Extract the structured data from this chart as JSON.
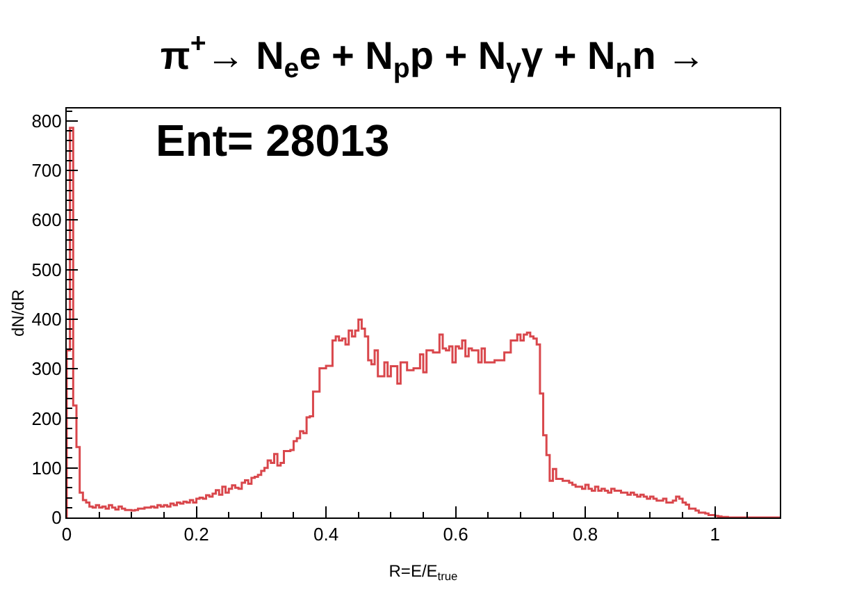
{
  "chart_data": {
    "type": "histogram",
    "title": "π$^{+}$→ N$_{e}$e + N$_{p}$p + N$_{γ}$γ + N$_{n}$n →",
    "annotations": [
      "Ent= 28013"
    ],
    "xlabel": "R=E/E$_{true}$",
    "ylabel": "dN/dR",
    "color": "#d9474c",
    "xlim": [
      0,
      1.1
    ],
    "xticks": [
      0,
      0.2,
      0.4,
      0.6,
      0.8,
      1
    ],
    "ylim": [
      0,
      825
    ],
    "yticks": [
      0,
      100,
      200,
      300,
      400,
      500,
      600,
      700,
      800
    ],
    "bins": [
      0.0,
      0.005,
      0.01,
      0.015,
      0.02,
      0.025,
      0.03,
      0.035,
      0.04,
      0.045,
      0.05,
      0.055,
      0.06,
      0.065,
      0.07,
      0.075,
      0.08,
      0.085,
      0.09,
      0.095,
      0.1,
      0.105,
      0.11,
      0.115,
      0.12,
      0.125,
      0.13,
      0.135,
      0.14,
      0.145,
      0.15,
      0.155,
      0.16,
      0.165,
      0.17,
      0.175,
      0.18,
      0.185,
      0.19,
      0.195,
      0.2,
      0.205,
      0.21,
      0.215,
      0.22,
      0.225,
      0.23,
      0.235,
      0.24,
      0.245,
      0.25,
      0.255,
      0.26,
      0.265,
      0.27,
      0.275,
      0.28,
      0.285,
      0.29,
      0.295,
      0.3,
      0.305,
      0.31,
      0.315,
      0.32,
      0.325,
      0.33,
      0.335,
      0.34,
      0.345,
      0.35,
      0.355,
      0.36,
      0.365,
      0.37,
      0.375,
      0.38,
      0.385,
      0.39,
      0.395,
      0.4,
      0.405,
      0.41,
      0.415,
      0.42,
      0.425,
      0.43,
      0.435,
      0.44,
      0.445,
      0.45,
      0.455,
      0.46,
      0.465,
      0.47,
      0.475,
      0.48,
      0.485,
      0.49,
      0.495,
      0.5,
      0.505,
      0.51,
      0.515,
      0.52,
      0.525,
      0.53,
      0.535,
      0.54,
      0.545,
      0.55,
      0.555,
      0.56,
      0.565,
      0.57,
      0.575,
      0.58,
      0.585,
      0.59,
      0.595,
      0.6,
      0.605,
      0.61,
      0.615,
      0.62,
      0.625,
      0.63,
      0.635,
      0.64,
      0.645,
      0.65,
      0.655,
      0.66,
      0.665,
      0.67,
      0.675,
      0.68,
      0.685,
      0.69,
      0.695,
      0.7,
      0.705,
      0.71,
      0.715,
      0.72,
      0.725,
      0.73,
      0.735,
      0.74,
      0.745,
      0.75,
      0.755,
      0.76,
      0.765,
      0.77,
      0.775,
      0.78,
      0.785,
      0.79,
      0.795,
      0.8,
      0.805,
      0.81,
      0.815,
      0.82,
      0.825,
      0.83,
      0.835,
      0.84,
      0.845,
      0.85,
      0.855,
      0.86,
      0.865,
      0.87,
      0.875,
      0.88,
      0.885,
      0.89,
      0.895,
      0.9,
      0.905,
      0.91,
      0.915,
      0.92,
      0.925,
      0.93,
      0.935,
      0.94,
      0.945,
      0.95,
      0.955,
      0.96,
      0.965,
      0.97,
      0.975,
      0.98,
      0.985,
      0.99,
      0.995,
      1.0,
      1.005,
      1.01,
      1.015,
      1.02,
      1.025,
      1.03,
      1.035,
      1.04,
      1.045,
      1.05,
      1.055,
      1.06,
      1.065,
      1.07,
      1.075,
      1.08,
      1.085,
      1.09,
      1.095,
      1.1
    ],
    "values": [
      337,
      786,
      226,
      142,
      50,
      35,
      30,
      22,
      20,
      25,
      20,
      22,
      18,
      25,
      20,
      16,
      22,
      18,
      15,
      15,
      14,
      15,
      18,
      18,
      20,
      20,
      22,
      20,
      25,
      22,
      25,
      22,
      28,
      25,
      30,
      28,
      32,
      30,
      35,
      30,
      38,
      40,
      38,
      45,
      42,
      48,
      55,
      46,
      62,
      50,
      58,
      65,
      60,
      58,
      70,
      75,
      68,
      80,
      82,
      86,
      94,
      100,
      115,
      110,
      128,
      105,
      110,
      134,
      134,
      136,
      154,
      160,
      174,
      170,
      202,
      204,
      254,
      254,
      301,
      301,
      306,
      306,
      357,
      365,
      357,
      361,
      349,
      377,
      365,
      377,
      399,
      381,
      365,
      317,
      309,
      337,
      285,
      285,
      313,
      285,
      305,
      305,
      270,
      313,
      313,
      297,
      297,
      301,
      301,
      329,
      293,
      337,
      337,
      333,
      333,
      369,
      341,
      337,
      345,
      313,
      345,
      341,
      357,
      325,
      341,
      337,
      337,
      313,
      341,
      313,
      313,
      313,
      317,
      317,
      317,
      333,
      333,
      357,
      357,
      369,
      357,
      369,
      373,
      365,
      361,
      349,
      250,
      166,
      126,
      74,
      98,
      78,
      78,
      74,
      74,
      70,
      66,
      62,
      62,
      58,
      66,
      58,
      54,
      62,
      54,
      58,
      54,
      50,
      58,
      54,
      54,
      50,
      50,
      46,
      50,
      46,
      42,
      46,
      42,
      38,
      42,
      38,
      34,
      34,
      38,
      30,
      30,
      34,
      42,
      38,
      30,
      26,
      18,
      18,
      14,
      10,
      10,
      8,
      5,
      5,
      3,
      2,
      1,
      1,
      0,
      0,
      0,
      0,
      0,
      0,
      0,
      0,
      0,
      0,
      0,
      0,
      0,
      0,
      0,
      0
    ]
  }
}
